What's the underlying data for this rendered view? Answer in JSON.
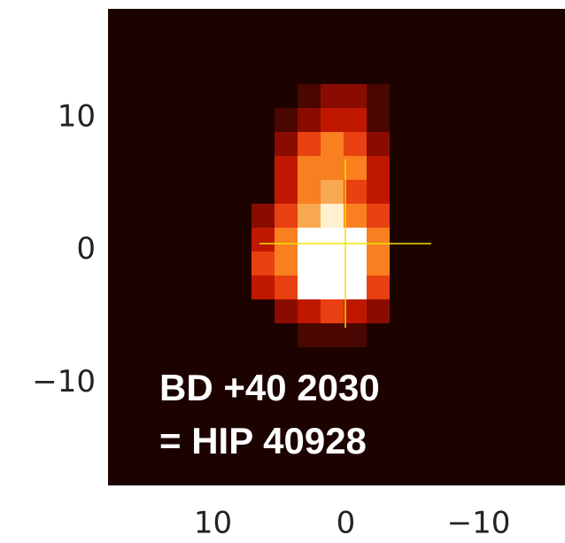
{
  "chart_data": {
    "type": "image",
    "xlim": [
      17.9,
      -16.5
    ],
    "ylim": [
      -17.7,
      18.2
    ],
    "xticks": [
      10,
      0,
      {
        "value": -10,
        "label": "−10"
      }
    ],
    "yticks": [
      10,
      0,
      {
        "value": -10,
        "label": "−10"
      }
    ],
    "annotations": [
      "BD +40 2030",
      "= HIP 40928"
    ]
  }
}
